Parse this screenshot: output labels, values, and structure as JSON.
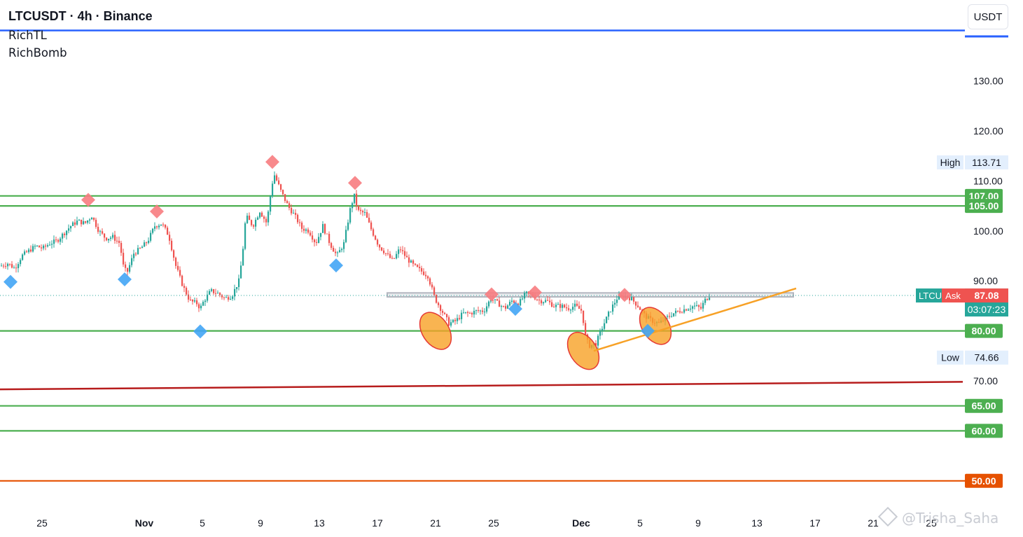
{
  "header": {
    "title": "LTCUSDT · 4h · Binance",
    "indicators": [
      "RichTL",
      "RichBomb"
    ],
    "currency_button": "USDT"
  },
  "watermark": "@Trisha_Saha",
  "price_tags": {
    "high": {
      "label": "High",
      "value": "113.71",
      "price": 113.71
    },
    "low": {
      "label": "Low",
      "value": "74.66",
      "price": 74.66
    },
    "last": {
      "symbol": "LTCU",
      "side": "Ask",
      "value": "87.08",
      "price": 87.08,
      "countdown": "03:07:23"
    }
  },
  "colors": {
    "bull": "#26a69a",
    "bear": "#ef5350",
    "support_line": "#4caf50",
    "trend_red": "#b71c1c",
    "level_orange": "#e65100",
    "trendline": "#f7a126",
    "diamond_top": "#f77c80",
    "diamond_bottom": "#42a5f5",
    "zone": "#b2b5be"
  },
  "chart_data": {
    "type": "candlestick",
    "symbol": "LTCUSDT",
    "interval": "4h",
    "exchange": "Binance",
    "y_axis": {
      "ticks": [
        130,
        120,
        110,
        100,
        90,
        70
      ],
      "tick_labels": [
        "130.00",
        "120.00",
        "110.00",
        "100.00",
        "90.00",
        "70.00"
      ],
      "range": [
        46,
        142
      ],
      "position": "right"
    },
    "x_axis": {
      "tick_labels": [
        "25",
        "Nov",
        "5",
        "9",
        "13",
        "17",
        "21",
        "25",
        "Dec",
        "5",
        "9",
        "13",
        "17",
        "21",
        "25"
      ]
    },
    "horizontal_levels": [
      {
        "price": 107,
        "label": "107.00",
        "color": "#4caf50"
      },
      {
        "price": 105,
        "label": "105.00",
        "color": "#4caf50"
      },
      {
        "price": 80,
        "label": "80.00",
        "color": "#4caf50"
      },
      {
        "price": 65,
        "label": "65.00",
        "color": "#4caf50"
      },
      {
        "price": 60,
        "label": "60.00",
        "color": "#4caf50"
      },
      {
        "price": 50,
        "label": "50.00",
        "color": "#e65100"
      }
    ],
    "resistance_zone": {
      "price_low": 86.8,
      "price_high": 87.6
    },
    "price_path": [
      [
        0,
        93
      ],
      [
        10,
        93.5
      ],
      [
        20,
        92.5
      ],
      [
        30,
        95
      ],
      [
        40,
        96
      ],
      [
        50,
        97
      ],
      [
        60,
        96.5
      ],
      [
        70,
        97.5
      ],
      [
        80,
        98
      ],
      [
        90,
        99.5
      ],
      [
        100,
        101
      ],
      [
        110,
        102
      ],
      [
        120,
        101.5
      ],
      [
        130,
        103
      ],
      [
        140,
        100
      ],
      [
        150,
        98.5
      ],
      [
        160,
        98.8
      ],
      [
        170,
        97.5
      ],
      [
        175,
        93
      ],
      [
        180,
        91.5
      ],
      [
        190,
        95.5
      ],
      [
        200,
        96.5
      ],
      [
        210,
        98
      ],
      [
        220,
        101
      ],
      [
        230,
        101.5
      ],
      [
        240,
        99
      ],
      [
        250,
        93
      ],
      [
        260,
        89
      ],
      [
        270,
        86
      ],
      [
        280,
        85.5
      ],
      [
        285,
        84.5
      ],
      [
        290,
        86
      ],
      [
        300,
        88
      ],
      [
        310,
        87.5
      ],
      [
        320,
        86.5
      ],
      [
        330,
        87
      ],
      [
        340,
        90
      ],
      [
        345,
        95
      ],
      [
        350,
        103
      ],
      [
        360,
        101
      ],
      [
        370,
        104
      ],
      [
        380,
        101.5
      ],
      [
        385,
        107
      ],
      [
        390,
        111.5
      ],
      [
        400,
        108
      ],
      [
        410,
        105
      ],
      [
        420,
        103
      ],
      [
        430,
        100.5
      ],
      [
        440,
        100
      ],
      [
        450,
        97.5
      ],
      [
        460,
        101
      ],
      [
        470,
        97.5
      ],
      [
        480,
        95
      ],
      [
        490,
        97.5
      ],
      [
        500,
        105
      ],
      [
        505,
        107
      ],
      [
        510,
        104
      ],
      [
        520,
        103.5
      ],
      [
        530,
        100
      ],
      [
        540,
        97
      ],
      [
        550,
        95.5
      ],
      [
        560,
        94
      ],
      [
        570,
        96.5
      ],
      [
        580,
        94.5
      ],
      [
        590,
        93
      ],
      [
        600,
        92
      ],
      [
        610,
        91
      ],
      [
        620,
        86.5
      ],
      [
        630,
        84
      ],
      [
        640,
        81.5
      ],
      [
        650,
        82
      ],
      [
        660,
        83.5
      ],
      [
        670,
        83.5
      ],
      [
        680,
        84
      ],
      [
        690,
        84
      ],
      [
        700,
        86.5
      ],
      [
        710,
        85.5
      ],
      [
        720,
        84.5
      ],
      [
        730,
        86
      ],
      [
        740,
        85.5
      ],
      [
        750,
        87.5
      ],
      [
        760,
        87
      ],
      [
        770,
        86
      ],
      [
        780,
        86
      ],
      [
        790,
        85
      ],
      [
        800,
        85
      ],
      [
        810,
        84.5
      ],
      [
        820,
        85
      ],
      [
        830,
        84
      ],
      [
        835,
        79
      ],
      [
        840,
        77
      ],
      [
        850,
        77.5
      ],
      [
        860,
        81
      ],
      [
        870,
        84
      ],
      [
        880,
        86.5
      ],
      [
        890,
        87
      ],
      [
        900,
        86.5
      ],
      [
        910,
        85
      ],
      [
        920,
        83
      ],
      [
        930,
        82
      ],
      [
        940,
        81.5
      ],
      [
        950,
        82.5
      ],
      [
        960,
        83.5
      ],
      [
        970,
        84
      ],
      [
        980,
        84.5
      ],
      [
        990,
        85
      ],
      [
        1000,
        84.5
      ],
      [
        1005,
        86
      ],
      [
        1012,
        87.08
      ]
    ],
    "annotations": {
      "diamonds_top": [
        [
          126,
          106.2
        ],
        [
          224,
          103.9
        ],
        [
          389,
          113.8
        ],
        [
          507,
          109.6
        ],
        [
          702,
          87.3
        ],
        [
          764,
          87.7
        ],
        [
          892,
          87.2
        ]
      ],
      "diamonds_bottom": [
        [
          15,
          89.8
        ],
        [
          178,
          90.3
        ],
        [
          286,
          79.9
        ],
        [
          480,
          93.1
        ],
        [
          736,
          84.4
        ],
        [
          925,
          80
        ]
      ],
      "ellipses": [
        [
          622,
          80
        ],
        [
          833,
          76
        ],
        [
          936,
          81
        ]
      ],
      "trendline": [
        [
          848,
          76
        ],
        [
          1137,
          88.5
        ]
      ],
      "red_trendline": [
        [
          0,
          68.3
        ],
        [
          1375,
          69.8
        ]
      ]
    }
  }
}
